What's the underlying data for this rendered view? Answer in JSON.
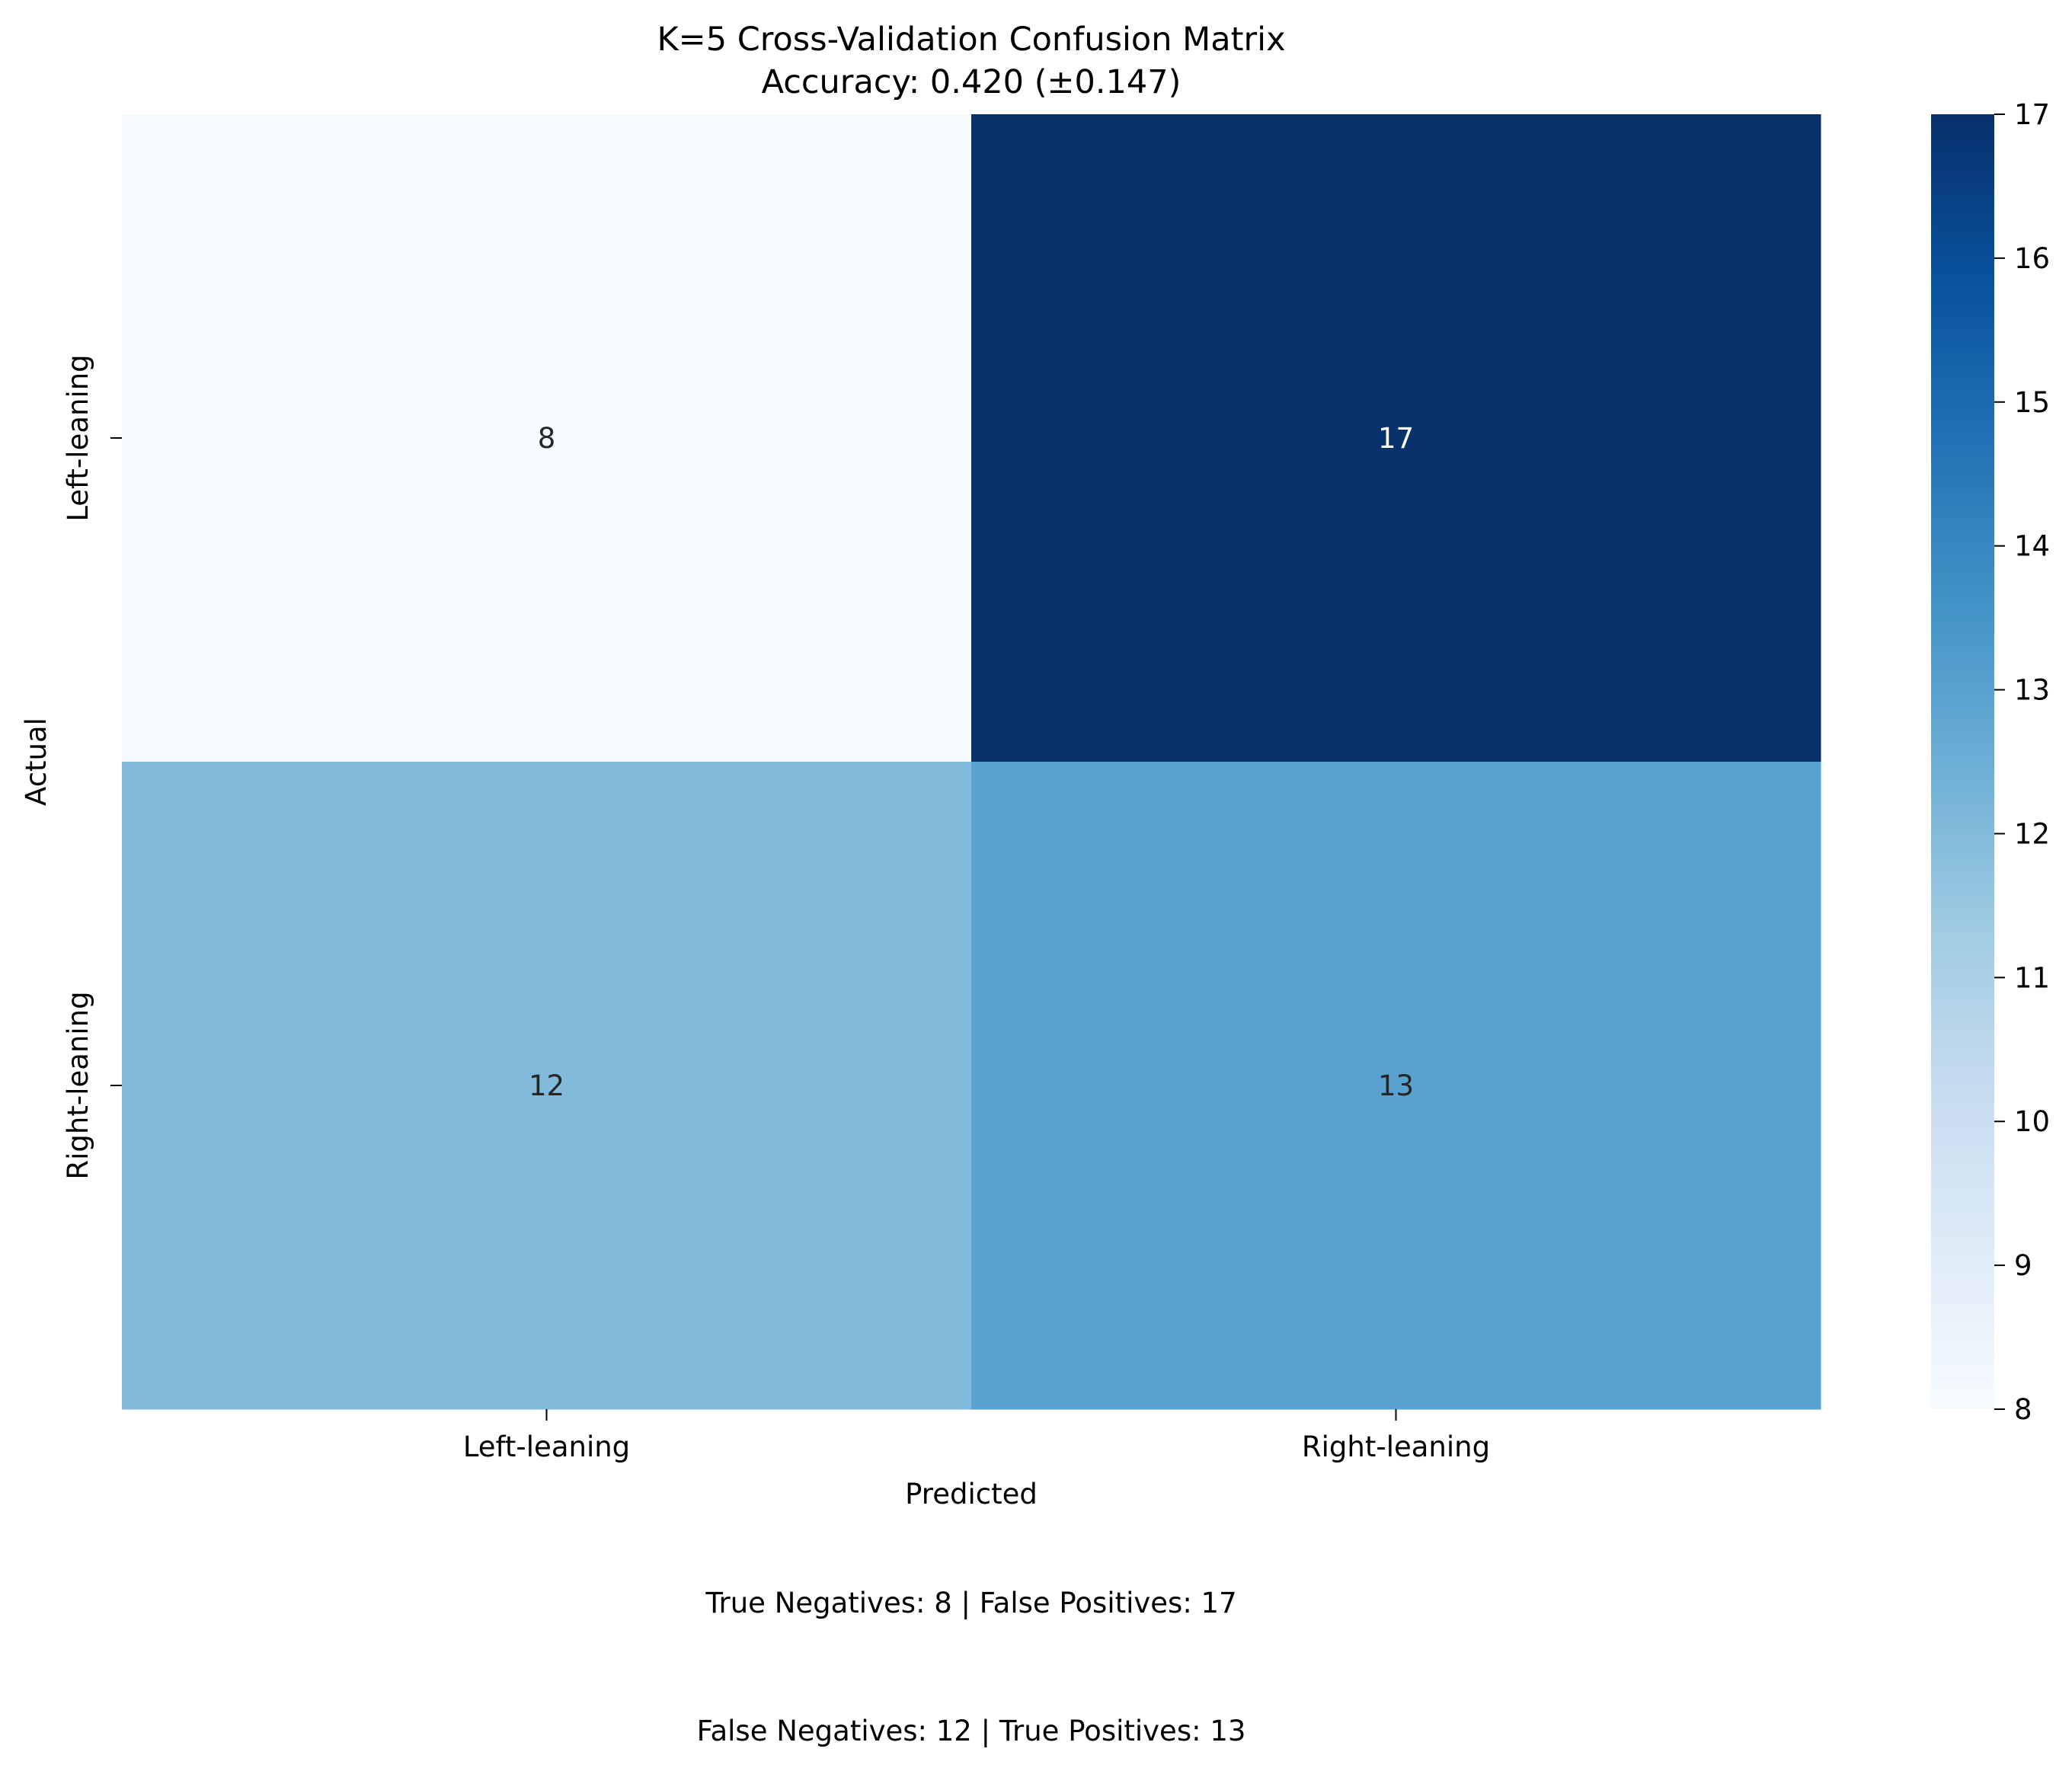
{
  "chart_data": {
    "type": "heatmap",
    "title_lines": [
      "K=5 Cross-Validation Confusion Matrix",
      "Accuracy: 0.420 (±0.147)"
    ],
    "xlabel": "Predicted",
    "ylabel": "Actual",
    "x_categories": [
      "Left-leaning",
      "Right-leaning"
    ],
    "y_categories": [
      "Left-leaning",
      "Right-leaning"
    ],
    "values": [
      [
        8,
        17
      ],
      [
        12,
        13
      ]
    ],
    "colormap": "Blues",
    "colorbar": {
      "min": 8,
      "max": 17,
      "ticks": [
        8,
        9,
        10,
        11,
        12,
        13,
        14,
        15,
        16,
        17
      ]
    },
    "annotations": [
      "True Negatives: 8 | False Positives: 17",
      "False Negatives: 12 | True Positives: 13"
    ]
  },
  "colors": {
    "blues_scale": [
      "#f7fbff",
      "#deebf7",
      "#c6dbef",
      "#9ecae1",
      "#6baed6",
      "#4292c6",
      "#2171b5",
      "#08519c",
      "#08306b"
    ],
    "annotation_dark": "#262626",
    "annotation_light": "#ffffff",
    "text": "#000000"
  }
}
